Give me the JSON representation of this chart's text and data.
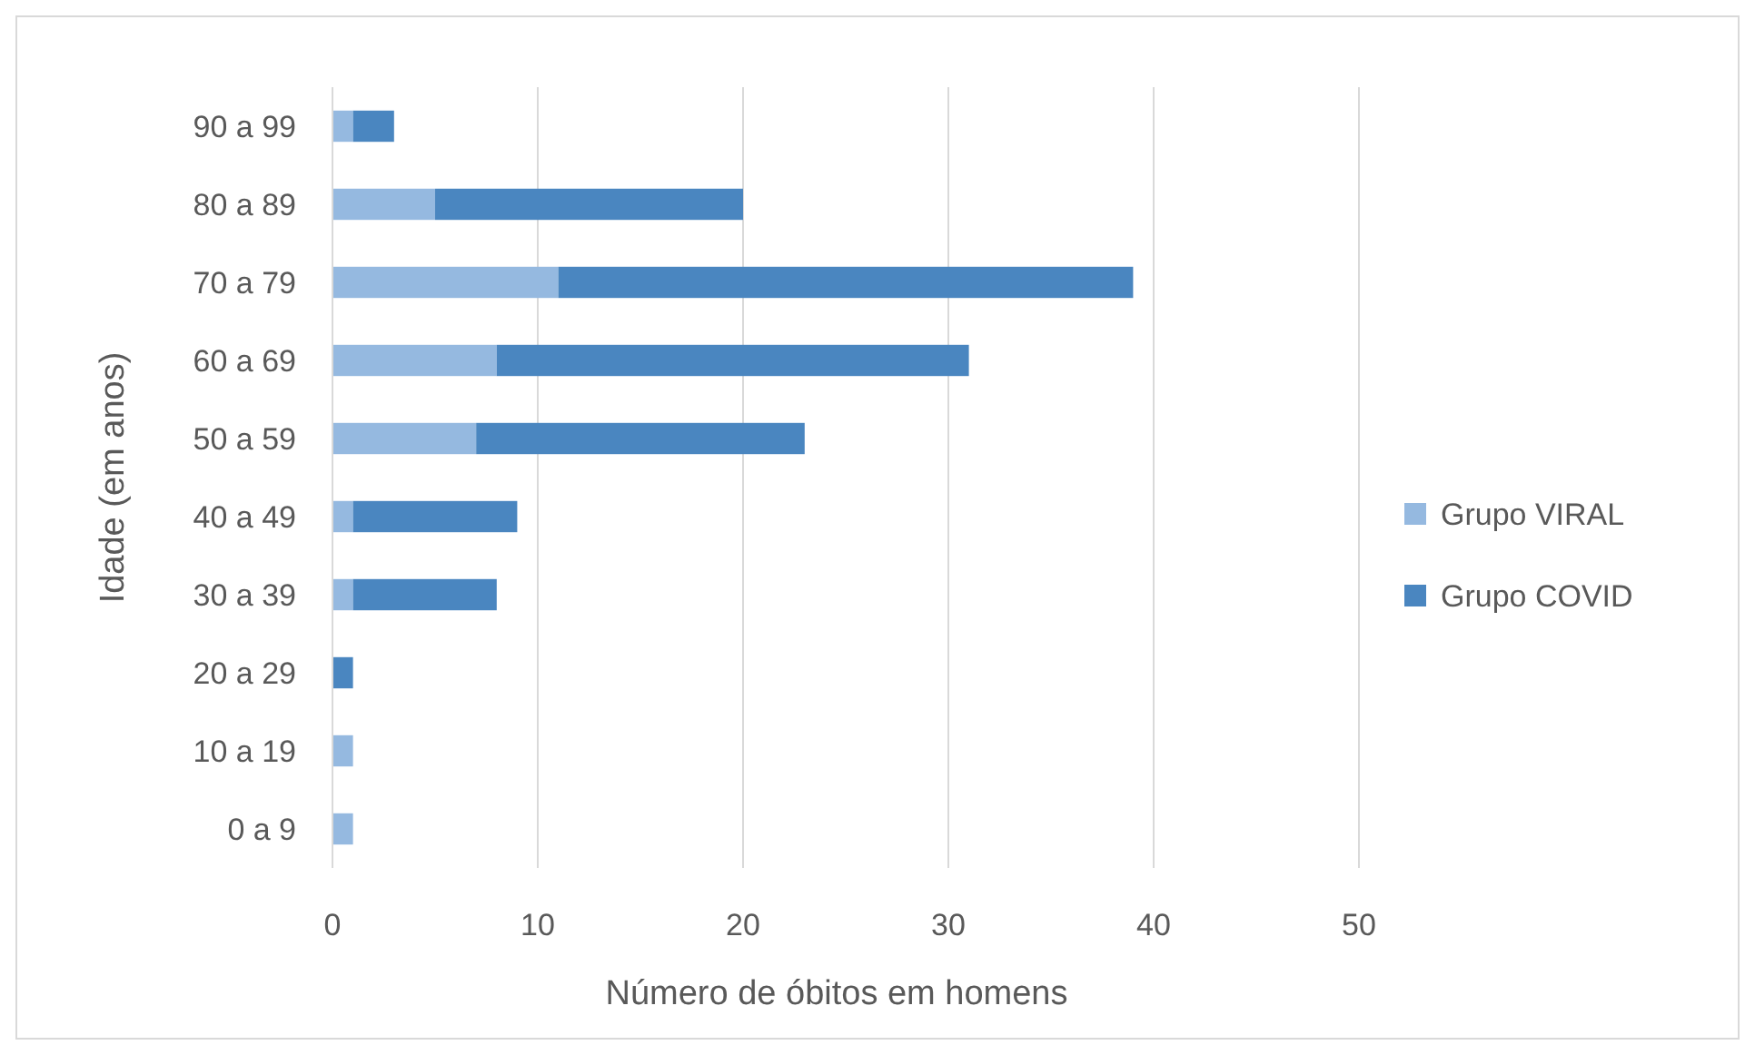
{
  "chart_data": {
    "type": "bar",
    "orientation": "horizontal",
    "stacked": true,
    "xlabel": "Número de óbitos em homens",
    "ylabel": "Idade (em anos)",
    "categories": [
      "90 a 99",
      "80 a 89",
      "70 a 79",
      "60 a 69",
      "50 a 59",
      "40 a 49",
      "30 a 39",
      "20 a 29",
      "10 a 19",
      "0 a 9"
    ],
    "series": [
      {
        "name": "Grupo VIRAL",
        "color": "#95b9e0",
        "values": [
          1,
          5,
          11,
          8,
          7,
          1,
          1,
          0,
          1,
          1
        ]
      },
      {
        "name": "Grupo COVID",
        "color": "#4a86c0",
        "values": [
          2,
          15,
          28,
          23,
          16,
          8,
          7,
          1,
          0,
          0
        ]
      }
    ],
    "xlim": [
      0,
      50
    ],
    "xticks": [
      0,
      10,
      20,
      30,
      40,
      50
    ],
    "grid": "x",
    "legend": "right"
  }
}
